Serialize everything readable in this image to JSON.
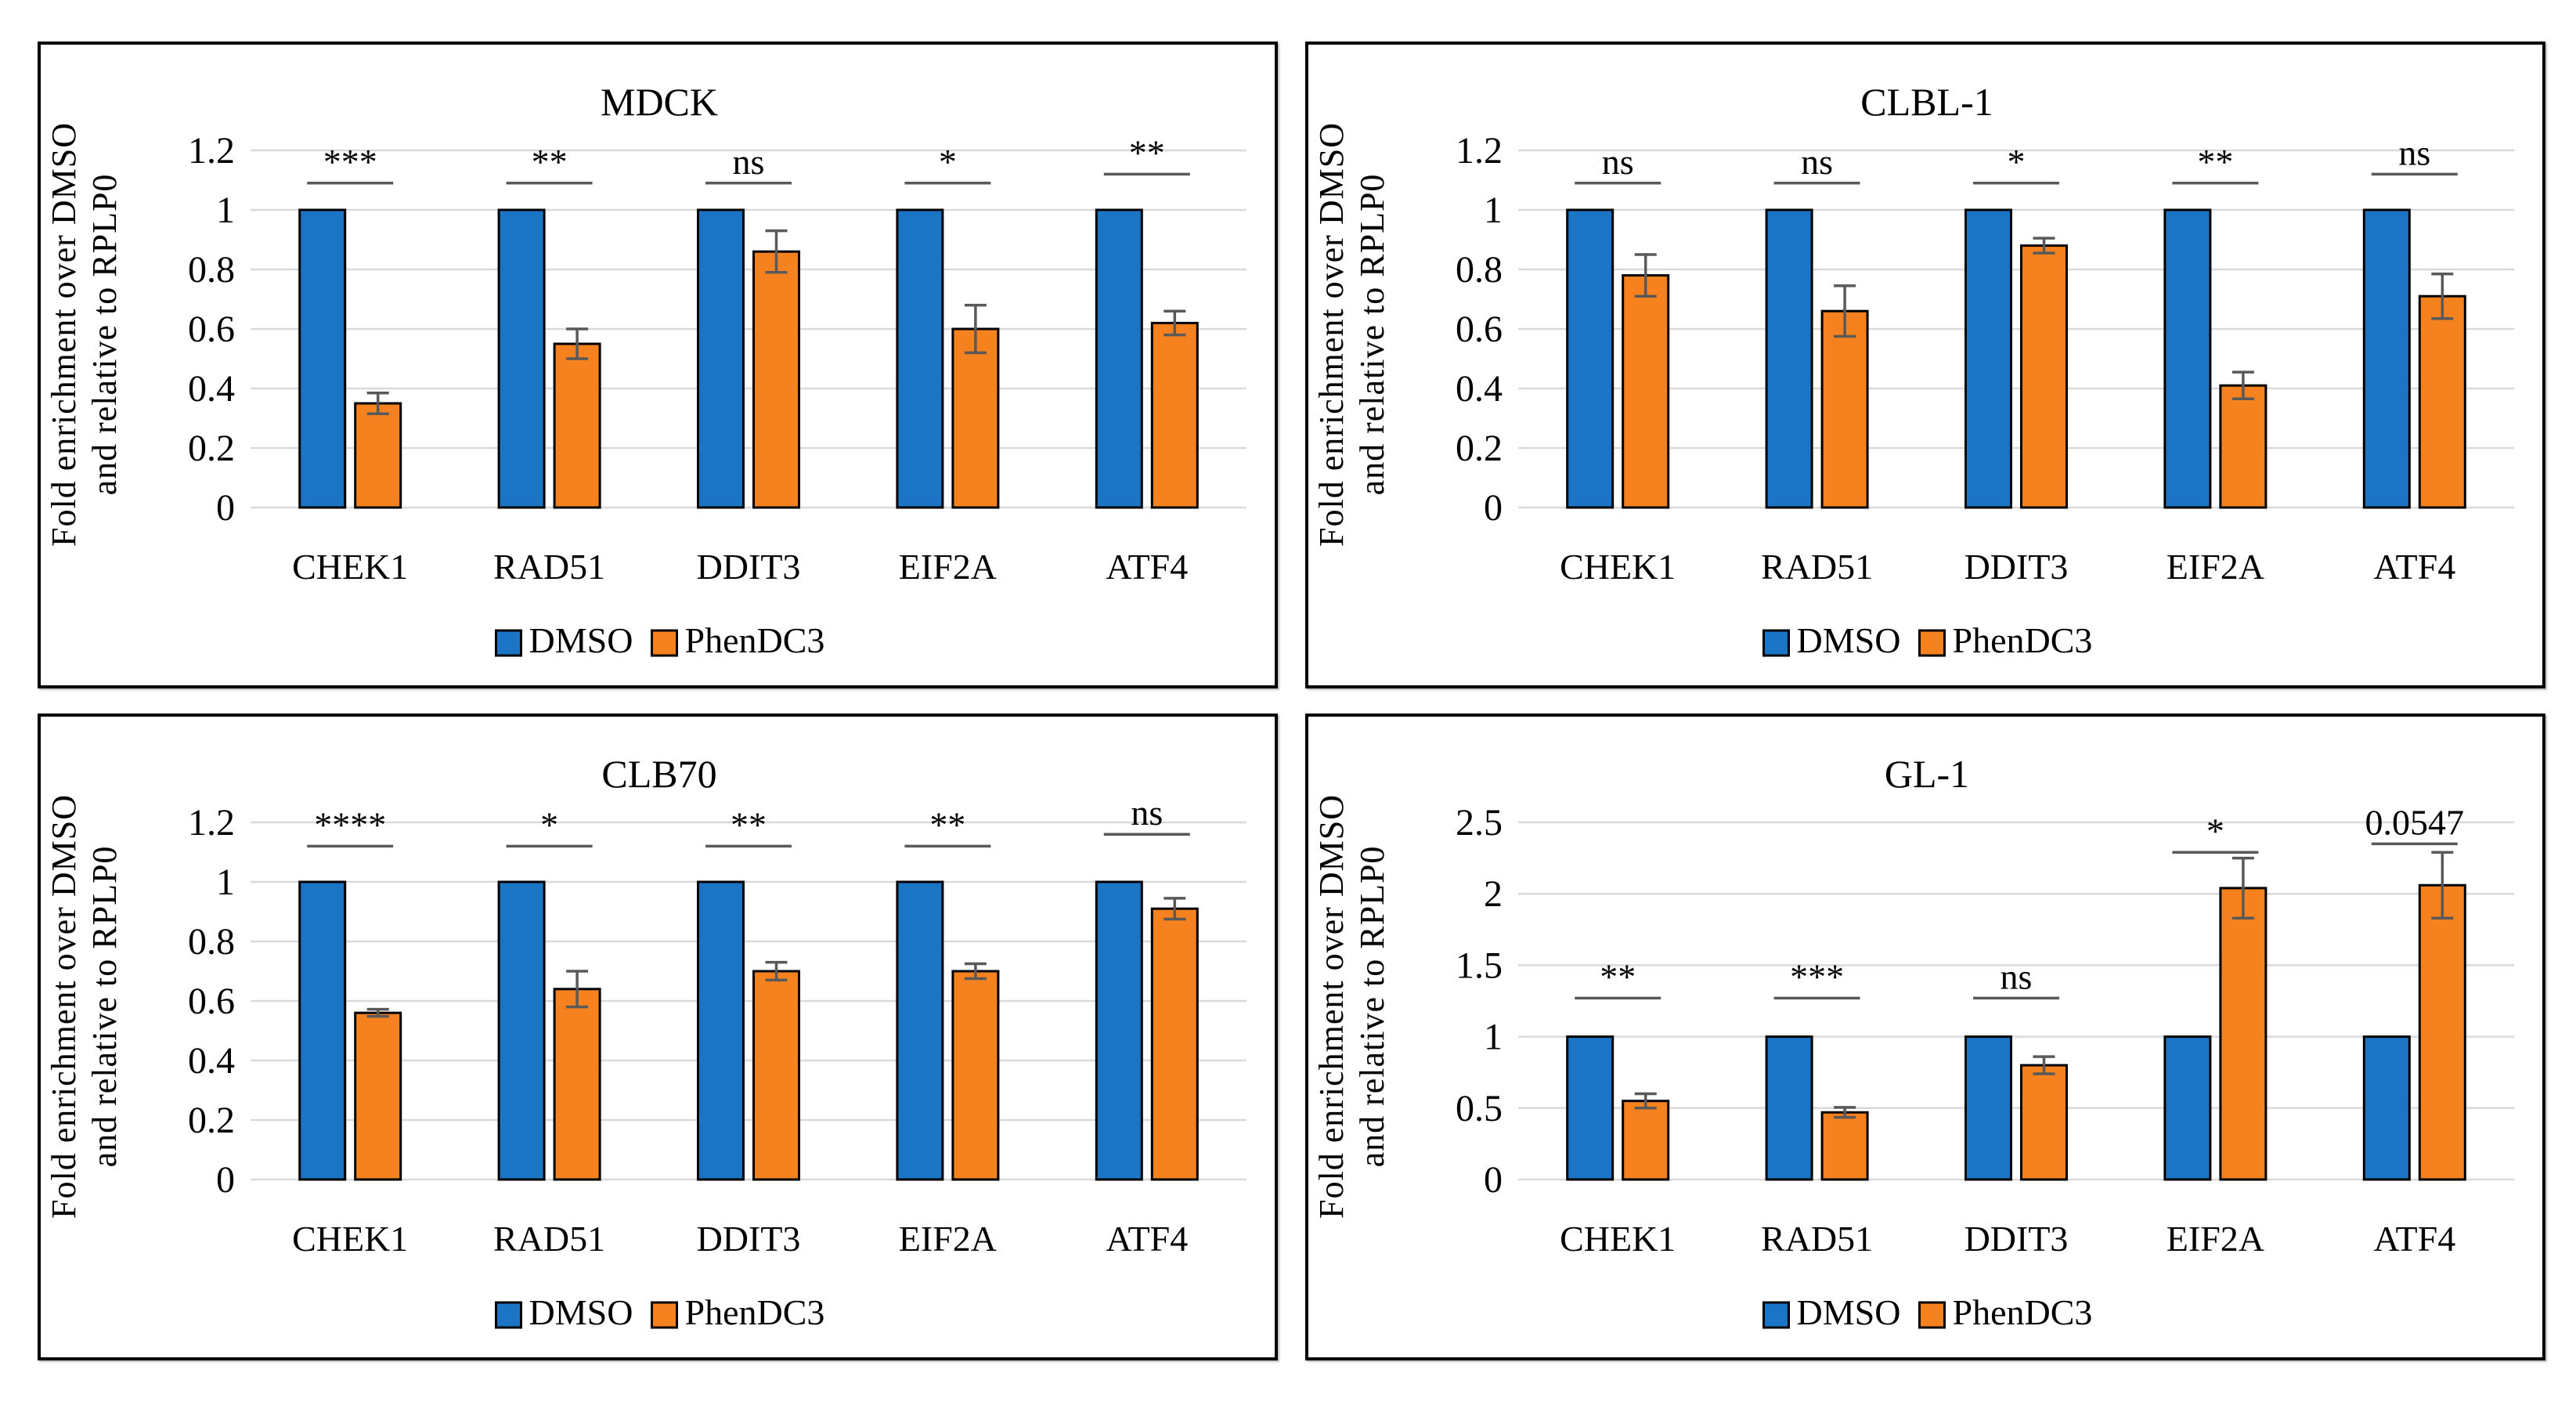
{
  "figure": {
    "background": "#ffffff",
    "ylabel_line1": "Fold enrichment over DMSO",
    "ylabel_line2": "and relative to RPLP0",
    "colors": {
      "dmso": "#1C74C4",
      "phendc3": "#F6821F",
      "grid": "#D9D9D9",
      "error_bar": "#595959",
      "sig_line": "#595959",
      "bar_outline": "#000000",
      "text": "#000000"
    },
    "legend": {
      "items": [
        {
          "label": "DMSO",
          "color": "#1C74C4"
        },
        {
          "label": "PhenDC3",
          "color": "#F6821F"
        }
      ]
    }
  },
  "chart_data": [
    {
      "type": "bar",
      "title": "MDCK",
      "categories": [
        "CHEK1",
        "RAD51",
        "DDIT3",
        "EIF2A",
        "ATF4"
      ],
      "series": [
        {
          "name": "DMSO",
          "color": "#1C74C4",
          "values": [
            1,
            1,
            1,
            1,
            1
          ]
        },
        {
          "name": "PhenDC3",
          "color": "#F6821F",
          "values": [
            0.35,
            0.55,
            0.86,
            0.6,
            0.62
          ],
          "errors": [
            0.035,
            0.05,
            0.07,
            0.08,
            0.04
          ]
        }
      ],
      "significance": [
        {
          "label": "***",
          "y": 1.09
        },
        {
          "label": "**",
          "y": 1.09
        },
        {
          "label": "ns",
          "y": 1.09
        },
        {
          "label": "*",
          "y": 1.09
        },
        {
          "label": "**",
          "y": 1.12
        }
      ],
      "ylim": [
        0,
        1.2
      ],
      "yticks": [
        "0",
        "0.2",
        "0.4",
        "0.6",
        "0.8",
        "1",
        "1.2"
      ],
      "ytick_values": [
        0,
        0.2,
        0.4,
        0.6,
        0.8,
        1,
        1.2
      ],
      "ylabel": "Fold enrichment over DMSO and relative to RPLP0",
      "grid": true,
      "legend_position": "bottom"
    },
    {
      "type": "bar",
      "title": "CLBL-1",
      "categories": [
        "CHEK1",
        "RAD51",
        "DDIT3",
        "EIF2A",
        "ATF4"
      ],
      "series": [
        {
          "name": "DMSO",
          "color": "#1C74C4",
          "values": [
            1,
            1,
            1,
            1,
            1
          ]
        },
        {
          "name": "PhenDC3",
          "color": "#F6821F",
          "values": [
            0.78,
            0.66,
            0.88,
            0.41,
            0.71
          ],
          "errors": [
            0.07,
            0.085,
            0.025,
            0.045,
            0.075
          ]
        }
      ],
      "significance": [
        {
          "label": "ns",
          "y": 1.09
        },
        {
          "label": "ns",
          "y": 1.09
        },
        {
          "label": "*",
          "y": 1.09
        },
        {
          "label": "**",
          "y": 1.09
        },
        {
          "label": "ns",
          "y": 1.12
        }
      ],
      "ylim": [
        0,
        1.2
      ],
      "yticks": [
        "0",
        "0.2",
        "0.4",
        "0.6",
        "0.8",
        "1",
        "1.2"
      ],
      "ytick_values": [
        0,
        0.2,
        0.4,
        0.6,
        0.8,
        1,
        1.2
      ],
      "ylabel": "Fold enrichment over DMSO and relative to RPLP0",
      "grid": true,
      "legend_position": "bottom"
    },
    {
      "type": "bar",
      "title": "CLB70",
      "categories": [
        "CHEK1",
        "RAD51",
        "DDIT3",
        "EIF2A",
        "ATF4"
      ],
      "series": [
        {
          "name": "DMSO",
          "color": "#1C74C4",
          "values": [
            1,
            1,
            1,
            1,
            1
          ]
        },
        {
          "name": "PhenDC3",
          "color": "#F6821F",
          "values": [
            0.56,
            0.64,
            0.7,
            0.7,
            0.91
          ],
          "errors": [
            0.012,
            0.06,
            0.03,
            0.025,
            0.035
          ]
        }
      ],
      "significance": [
        {
          "label": "****",
          "y": 1.12
        },
        {
          "label": "*",
          "y": 1.12
        },
        {
          "label": "**",
          "y": 1.12
        },
        {
          "label": "**",
          "y": 1.12
        },
        {
          "label": "ns",
          "y": 1.16
        }
      ],
      "ylim": [
        0,
        1.2
      ],
      "yticks": [
        "0",
        "0.2",
        "0.4",
        "0.6",
        "0.8",
        "1",
        "1.2"
      ],
      "ytick_values": [
        0,
        0.2,
        0.4,
        0.6,
        0.8,
        1,
        1.2
      ],
      "ylabel": "Fold enrichment over DMSO and relative to RPLP0",
      "grid": true,
      "legend_position": "bottom"
    },
    {
      "type": "bar",
      "title": "GL-1",
      "categories": [
        "CHEK1",
        "RAD51",
        "DDIT3",
        "EIF2A",
        "ATF4"
      ],
      "series": [
        {
          "name": "DMSO",
          "color": "#1C74C4",
          "values": [
            1,
            1,
            1,
            1,
            1
          ]
        },
        {
          "name": "PhenDC3",
          "color": "#F6821F",
          "values": [
            0.55,
            0.47,
            0.8,
            2.04,
            2.06
          ],
          "errors": [
            0.05,
            0.035,
            0.06,
            0.21,
            0.23
          ]
        }
      ],
      "significance": [
        {
          "label": "**",
          "y": 1.27
        },
        {
          "label": "***",
          "y": 1.27
        },
        {
          "label": "ns",
          "y": 1.27
        },
        {
          "label": "*",
          "y": 2.29
        },
        {
          "label": "0.0547",
          "y": 2.35
        }
      ],
      "ylim": [
        0,
        2.5
      ],
      "yticks": [
        "0",
        "0.5",
        "1",
        "1.5",
        "2",
        "2.5"
      ],
      "ytick_values": [
        0,
        0.5,
        1,
        1.5,
        2,
        2.5
      ],
      "ylabel": "Fold enrichment over DMSO and relative to RPLP0",
      "grid": true,
      "legend_position": "bottom"
    }
  ]
}
